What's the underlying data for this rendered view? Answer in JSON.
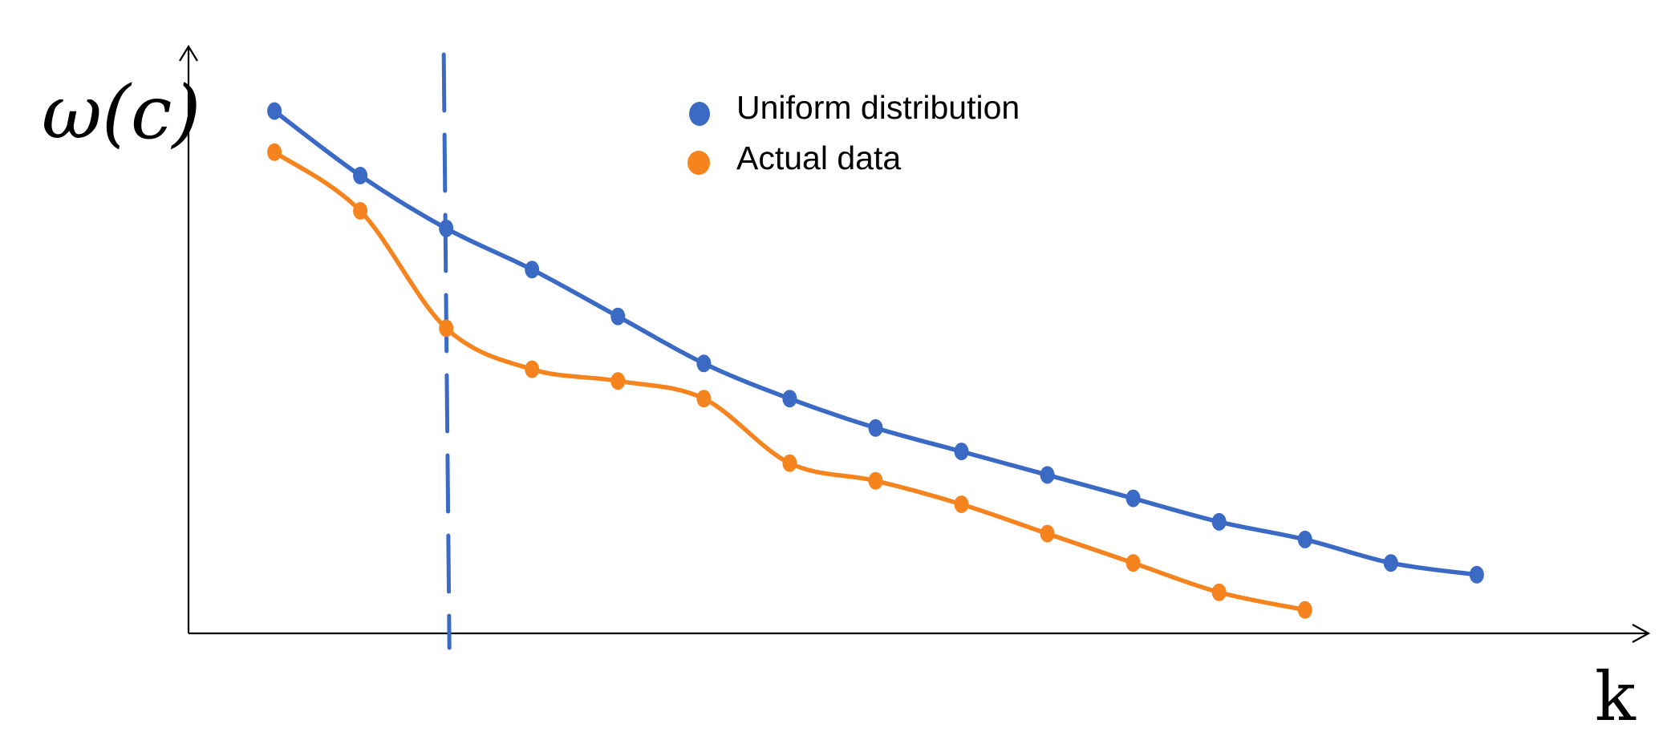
{
  "chart_data": {
    "type": "line",
    "title": "",
    "ylabel": "ω(c)",
    "xlabel": "k",
    "x": [
      1,
      2,
      3,
      4,
      5,
      6,
      7,
      8,
      9,
      10,
      11,
      12,
      13,
      14,
      15
    ],
    "series": [
      {
        "name": "Uniform distribution",
        "color": "#3a6ac4",
        "values": [
          0.89,
          0.78,
          0.69,
          0.62,
          0.54,
          0.46,
          0.4,
          0.35,
          0.31,
          0.27,
          0.23,
          0.19,
          0.16,
          0.12,
          0.1
        ]
      },
      {
        "name": "Actual data",
        "color": "#f5841f",
        "values": [
          0.82,
          0.72,
          0.52,
          0.45,
          0.43,
          0.4,
          0.29,
          0.26,
          0.22,
          0.17,
          0.12,
          0.07,
          0.04,
          null,
          null
        ]
      }
    ],
    "reference_line": {
      "x": 3,
      "color": "#3a6ac4",
      "style": "dashed"
    },
    "ylim": [
      0,
      1
    ],
    "xlim": [
      0,
      17
    ],
    "grid": false,
    "legend_position": "top-center",
    "ticks": "none"
  }
}
